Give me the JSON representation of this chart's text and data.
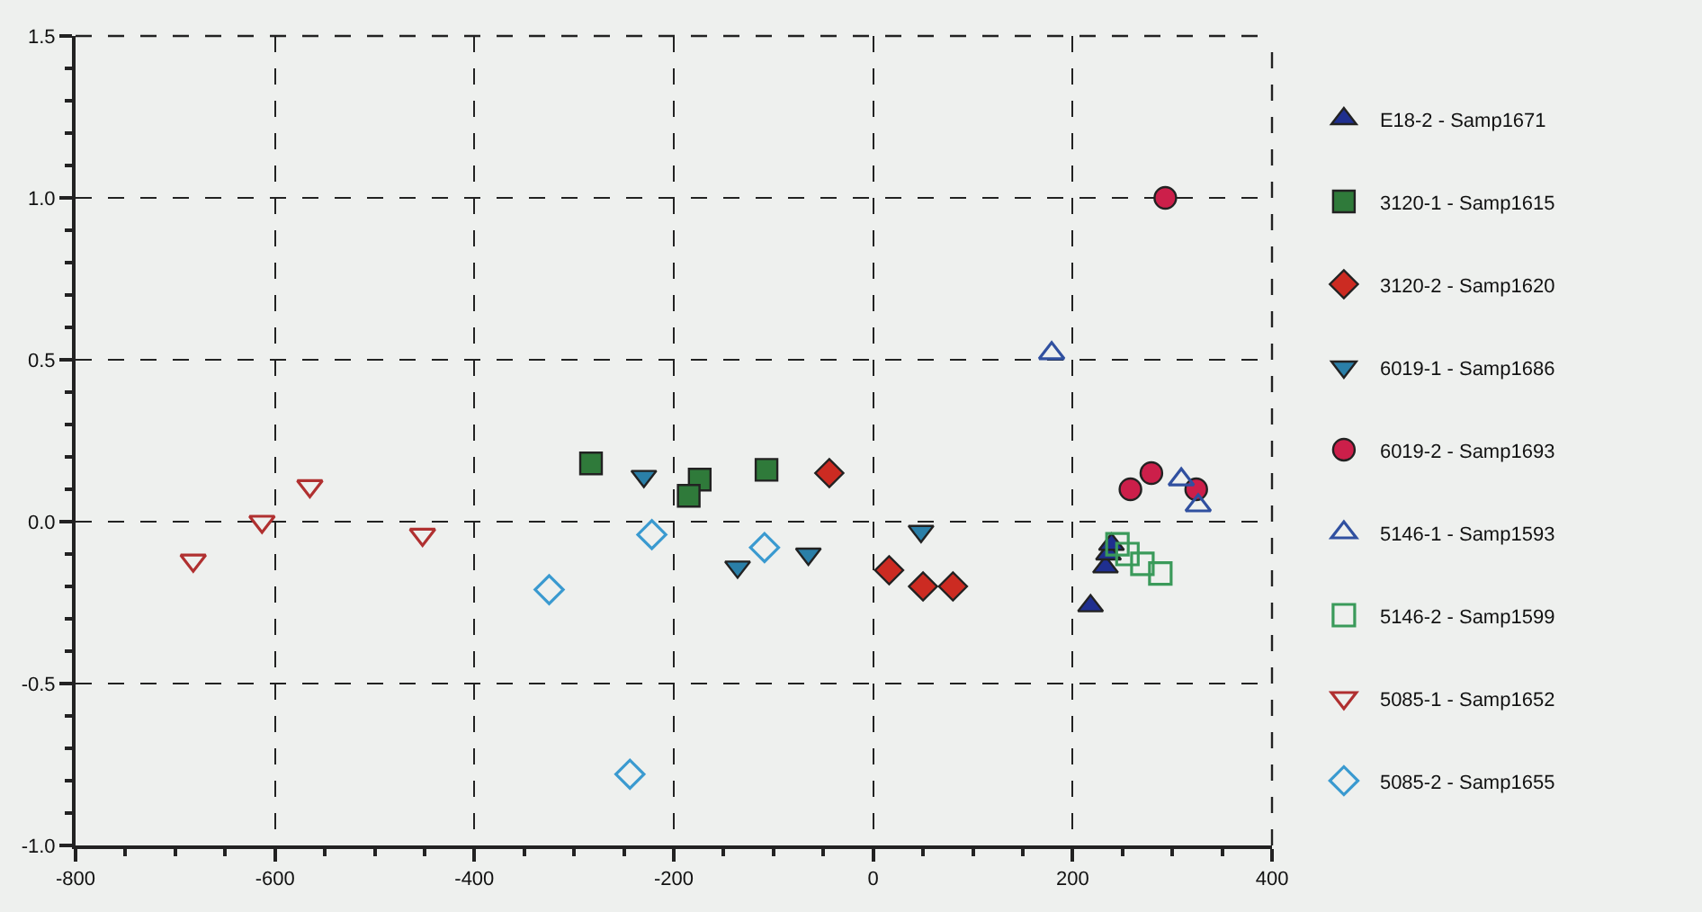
{
  "chart_data": {
    "type": "scatter",
    "xlim": [
      -800,
      400
    ],
    "ylim": [
      -1.0,
      1.5
    ],
    "xticks": [
      -800,
      -600,
      -400,
      -200,
      0,
      200,
      400
    ],
    "yticks": [
      {
        "value": -1.0,
        "label": "-1.0"
      },
      {
        "value": -0.5,
        "label": "-0.5"
      },
      {
        "value": 0,
        "label": "0.0"
      },
      {
        "value": 0.5,
        "label": "0.5"
      },
      {
        "value": 1.0,
        "label": "1.0"
      },
      {
        "value": 1.5,
        "label": "1.5"
      }
    ],
    "grid": true,
    "legend": "right",
    "series": [
      {
        "name": "E18-2 - Samp1671",
        "color": "#1f2f8f",
        "marker": "triangle",
        "x": [
          218,
          233,
          236,
          239
        ],
        "values": [
          -0.26,
          -0.14,
          -0.1,
          -0.07
        ]
      },
      {
        "name": "3120-1 - Samp1615",
        "color": "#2f7a3a",
        "marker": "square",
        "x": [
          -283,
          -174,
          -185,
          -107
        ],
        "values": [
          0.18,
          0.13,
          0.08,
          0.16
        ]
      },
      {
        "name": "3120-2 - Samp1620",
        "color": "#cc2b22",
        "marker": "diamond",
        "x": [
          -44,
          16,
          50,
          80
        ],
        "values": [
          0.15,
          -0.15,
          -0.2,
          -0.2
        ]
      },
      {
        "name": "6019-1 - Samp1686",
        "color": "#2a7fa8",
        "marker": "triangle-down",
        "x": [
          -230,
          -136,
          -65,
          48
        ],
        "values": [
          0.14,
          -0.14,
          -0.1,
          -0.03
        ]
      },
      {
        "name": "6019-2 - Samp1693",
        "color": "#cc1f4a",
        "marker": "circle",
        "x": [
          293,
          279,
          258,
          324
        ],
        "values": [
          1.0,
          0.15,
          0.1,
          0.1
        ]
      },
      {
        "name": "5146-1 - Samp1593",
        "color": "#3050a0",
        "marker": "triangle-open",
        "x": [
          179,
          309,
          326
        ],
        "values": [
          0.52,
          0.13,
          0.05
        ]
      },
      {
        "name": "5146-2 - Samp1599",
        "color": "#3a9a5a",
        "marker": "square-open",
        "x": [
          245,
          255,
          270,
          288
        ],
        "values": [
          -0.07,
          -0.1,
          -0.13,
          -0.16
        ]
      },
      {
        "name": "5085-1 - Samp1652",
        "color": "#b03030",
        "marker": "triangle-down-open",
        "x": [
          -682,
          -613,
          -565,
          -452
        ],
        "values": [
          -0.12,
          0.0,
          0.11,
          -0.04
        ]
      },
      {
        "name": "5085-2 - Samp1655",
        "color": "#3a9ad0",
        "marker": "diamond-open",
        "x": [
          -325,
          -222,
          -109,
          -244
        ],
        "values": [
          -0.21,
          -0.04,
          -0.08,
          -0.78
        ]
      }
    ]
  }
}
